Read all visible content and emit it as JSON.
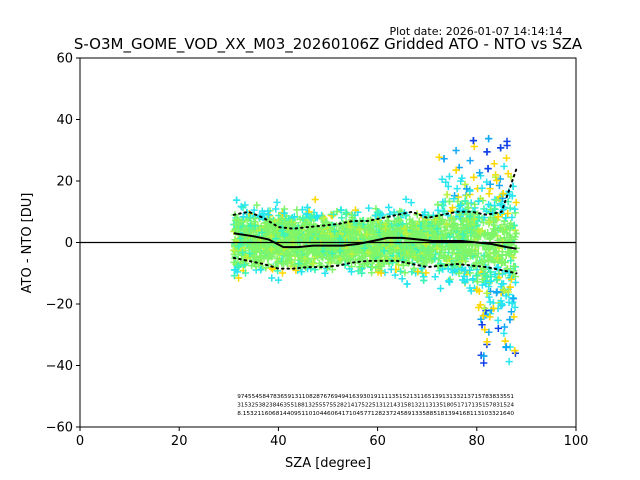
{
  "chart_data": {
    "type": "scatter",
    "title": "S-O3M_GOME_VOD_XX_M03_20260106Z Gridded ATO - NTO vs SZA",
    "plot_date": "Plot date: 2026-01-07 14:14:14",
    "xlabel": "SZA [degree]",
    "ylabel": "ATO - NTO [DU]",
    "xlim": [
      0,
      100
    ],
    "ylim": [
      -60,
      60
    ],
    "xticks": [
      0,
      20,
      40,
      60,
      80,
      100
    ],
    "yticks": [
      -60,
      -40,
      -20,
      0,
      20,
      40,
      60
    ],
    "grid": false,
    "reference_line_y": 0,
    "scatter_sza_range": [
      31,
      88
    ],
    "marker": "plus",
    "colors": {
      "cyan": "#27e6f0",
      "sky": "#11a8f5",
      "blue": "#1040e8",
      "green": "#7ff56a",
      "lime": "#b9f23e",
      "yellow": "#ffd800",
      "teal": "#3cf5b4",
      "line": "#000000"
    },
    "series": [
      {
        "name": "median",
        "style": "solid",
        "x": [
          31,
          35,
          38,
          41,
          44,
          47,
          50,
          53,
          56,
          59,
          62,
          65,
          68,
          71,
          74,
          77,
          80,
          83,
          86,
          88
        ],
        "y": [
          3,
          2,
          1,
          -1.5,
          -1.5,
          -1,
          -1,
          -1,
          -0.5,
          0.5,
          1.5,
          1.5,
          1,
          0.5,
          0.5,
          0.5,
          0,
          -0.5,
          -1.5,
          -2
        ]
      },
      {
        "name": "upper-spread",
        "style": "dotted",
        "x": [
          31,
          34,
          37,
          40,
          43,
          46,
          49,
          52,
          55,
          58,
          61,
          64,
          67,
          70,
          73,
          76,
          79,
          82,
          85,
          88
        ],
        "y": [
          9,
          10,
          8,
          5,
          4.5,
          5,
          5.5,
          6,
          7,
          7,
          8,
          9,
          10,
          8,
          9,
          10,
          10,
          9,
          10,
          24
        ]
      },
      {
        "name": "lower-spread",
        "style": "dotted",
        "x": [
          31,
          34,
          37,
          40,
          43,
          46,
          49,
          52,
          55,
          58,
          61,
          64,
          67,
          70,
          73,
          76,
          79,
          82,
          85,
          88
        ],
        "y": [
          -5,
          -6,
          -7,
          -8.5,
          -8.5,
          -8,
          -8,
          -7.5,
          -6.5,
          -6,
          -6,
          -6,
          -7,
          -8,
          -7.5,
          -7,
          -7.5,
          -8,
          -9,
          -10
        ]
      }
    ],
    "stats_rows": [
      "97455458478365913110828767694941639301911113515213116513913133213715783833551",
      "315325382384635518813255575528214175225131214315813211313518051717135157831524",
      "8.15321160681440951101044606417104577128237245891335885181394168113103321640"
    ]
  }
}
